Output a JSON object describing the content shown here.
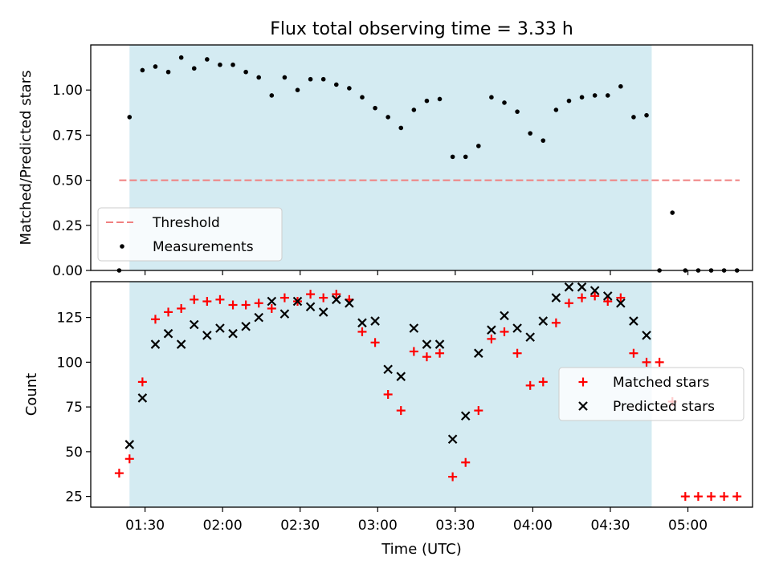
{
  "title": "Flux total observing time = 3.33 h",
  "chart_data": [
    {
      "type": "scatter",
      "panel": "top",
      "title": "Flux total observing time = 3.33 h",
      "ylabel": "Matched/Predicted stars",
      "xlabel": "",
      "xlim": [
        "01:09",
        "05:25"
      ],
      "ylim": [
        0,
        1.25
      ],
      "yticks": [
        0.0,
        0.25,
        0.5,
        0.75,
        1.0
      ],
      "ytick_labels": [
        "0.00",
        "0.25",
        "0.50",
        "0.75",
        "1.00"
      ],
      "shaded_region": {
        "start": "01:24",
        "end": "04:46",
        "color": "#d4ebf2"
      },
      "threshold": {
        "name": "Threshold",
        "value": 0.5,
        "x_start": "01:20",
        "x_end": "05:20",
        "color": "#f08080"
      },
      "legend": {
        "position": "lower-left",
        "entries": [
          "Threshold",
          "Measurements"
        ]
      },
      "series": [
        {
          "name": "Measurements",
          "color": "#000000",
          "marker": "dot",
          "x": [
            "01:20",
            "01:24",
            "01:29",
            "01:34",
            "01:39",
            "01:44",
            "01:49",
            "01:54",
            "01:59",
            "02:04",
            "02:09",
            "02:14",
            "02:19",
            "02:24",
            "02:29",
            "02:34",
            "02:39",
            "02:44",
            "02:49",
            "02:54",
            "02:59",
            "03:04",
            "03:09",
            "03:14",
            "03:19",
            "03:24",
            "03:29",
            "03:34",
            "03:39",
            "03:44",
            "03:49",
            "03:54",
            "03:59",
            "04:04",
            "04:09",
            "04:14",
            "04:19",
            "04:24",
            "04:29",
            "04:34",
            "04:39",
            "04:44",
            "04:49",
            "04:54",
            "04:59",
            "05:04",
            "05:09",
            "05:14",
            "05:19"
          ],
          "y": [
            0.0,
            0.85,
            1.11,
            1.13,
            1.1,
            1.18,
            1.12,
            1.17,
            1.14,
            1.14,
            1.1,
            1.07,
            0.97,
            1.07,
            1.0,
            1.06,
            1.06,
            1.03,
            1.01,
            0.96,
            0.9,
            0.85,
            0.79,
            0.89,
            0.94,
            0.95,
            0.63,
            0.63,
            0.69,
            0.96,
            0.93,
            0.88,
            0.76,
            0.72,
            0.89,
            0.94,
            0.96,
            0.97,
            0.97,
            1.02,
            0.85,
            0.86,
            0.0,
            0.32,
            0.0,
            0.0,
            0.0,
            0.0,
            0.0
          ]
        }
      ]
    },
    {
      "type": "scatter",
      "panel": "bottom",
      "title": "",
      "ylabel": "Count",
      "xlabel": "Time (UTC)",
      "xlim": [
        "01:09",
        "05:25"
      ],
      "ylim": [
        19,
        145
      ],
      "yticks": [
        25,
        50,
        75,
        100,
        125
      ],
      "ytick_labels": [
        "25",
        "50",
        "75",
        "100",
        "125"
      ],
      "xticks": [
        "01:30",
        "02:00",
        "02:30",
        "03:00",
        "03:30",
        "04:00",
        "04:30",
        "05:00"
      ],
      "shaded_region": {
        "start": "01:24",
        "end": "04:46",
        "color": "#d4ebf2"
      },
      "legend": {
        "position": "center-right",
        "entries": [
          "Matched stars",
          "Predicted stars"
        ]
      },
      "series": [
        {
          "name": "Matched stars",
          "color": "#ff0000",
          "marker": "plus",
          "x": [
            "01:20",
            "01:24",
            "01:29",
            "01:34",
            "01:39",
            "01:44",
            "01:49",
            "01:54",
            "01:59",
            "02:04",
            "02:09",
            "02:14",
            "02:19",
            "02:24",
            "02:29",
            "02:34",
            "02:39",
            "02:44",
            "02:49",
            "02:54",
            "02:59",
            "03:04",
            "03:09",
            "03:14",
            "03:19",
            "03:24",
            "03:29",
            "03:34",
            "03:39",
            "03:44",
            "03:49",
            "03:54",
            "03:59",
            "04:04",
            "04:09",
            "04:14",
            "04:19",
            "04:24",
            "04:29",
            "04:34",
            "04:39",
            "04:44",
            "04:49",
            "04:54",
            "04:59",
            "05:04",
            "05:09",
            "05:14",
            "05:19"
          ],
          "y": [
            38,
            46,
            89,
            124,
            128,
            130,
            135,
            134,
            135,
            132,
            132,
            133,
            130,
            136,
            134,
            138,
            136,
            138,
            135,
            117,
            111,
            82,
            73,
            106,
            103,
            105,
            36,
            44,
            73,
            113,
            117,
            105,
            87,
            89,
            122,
            133,
            136,
            137,
            134,
            136,
            105,
            100,
            100,
            78,
            25,
            25,
            25,
            25,
            25
          ]
        },
        {
          "name": "Predicted stars",
          "color": "#000000",
          "marker": "x",
          "x": [
            "01:24",
            "01:29",
            "01:34",
            "01:39",
            "01:44",
            "01:49",
            "01:54",
            "01:59",
            "02:04",
            "02:09",
            "02:14",
            "02:19",
            "02:24",
            "02:29",
            "02:34",
            "02:39",
            "02:44",
            "02:49",
            "02:54",
            "02:59",
            "03:04",
            "03:09",
            "03:14",
            "03:19",
            "03:24",
            "03:29",
            "03:34",
            "03:39",
            "03:44",
            "03:49",
            "03:54",
            "03:59",
            "04:04",
            "04:09",
            "04:14",
            "04:19",
            "04:24",
            "04:29",
            "04:34",
            "04:39",
            "04:44"
          ],
          "y": [
            54,
            80,
            110,
            116,
            110,
            121,
            115,
            119,
            116,
            120,
            125,
            134,
            127,
            134,
            131,
            128,
            135,
            133,
            122,
            123,
            96,
            92,
            119,
            110,
            110,
            57,
            70,
            105,
            118,
            126,
            119,
            114,
            123,
            136,
            142,
            142,
            140,
            137,
            133,
            123,
            115
          ]
        }
      ]
    }
  ]
}
